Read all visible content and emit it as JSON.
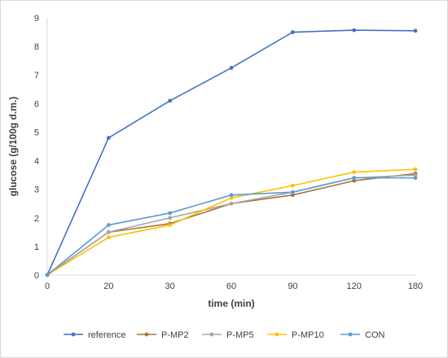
{
  "chart_data": {
    "type": "line",
    "title": "",
    "xlabel": "time (min)",
    "ylabel": "glucose (g/100g d.m.)",
    "categories": [
      "0",
      "20",
      "30",
      "60",
      "90",
      "120",
      "180"
    ],
    "ylim": [
      0,
      9
    ],
    "yticks": [
      "0",
      "1",
      "2",
      "3",
      "4",
      "5",
      "6",
      "7",
      "8",
      "9"
    ],
    "grid": false,
    "legend_position": "bottom",
    "series": [
      {
        "name": "reference",
        "color": "#4472C4",
        "values": [
          0,
          4.8,
          6.1,
          7.25,
          8.5,
          8.57,
          8.55
        ]
      },
      {
        "name": "P-MP2",
        "color": "#A5743C",
        "values": [
          0,
          1.5,
          1.8,
          2.5,
          2.8,
          3.3,
          3.55
        ]
      },
      {
        "name": "P-MP5",
        "color": "#A5A5A5",
        "values": [
          0,
          1.5,
          2.0,
          2.5,
          2.9,
          3.4,
          3.5
        ]
      },
      {
        "name": "P-MP10",
        "color": "#FFC000",
        "values": [
          0,
          1.32,
          1.75,
          2.7,
          3.13,
          3.6,
          3.7
        ]
      },
      {
        "name": "CON",
        "color": "#5B9BD5",
        "values": [
          0,
          1.75,
          2.17,
          2.8,
          2.9,
          3.4,
          3.4
        ]
      }
    ]
  }
}
